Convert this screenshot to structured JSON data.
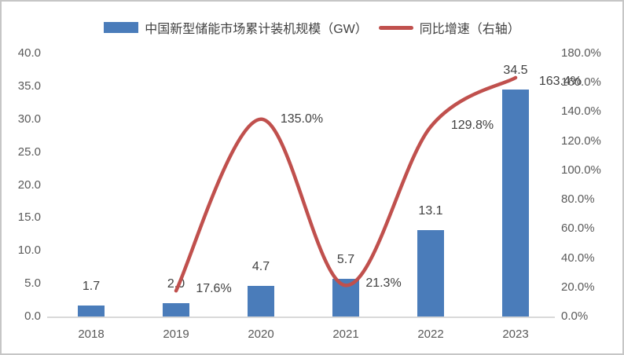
{
  "chart_data": {
    "type": "combo_bar_line",
    "title": "",
    "categories": [
      "2018",
      "2019",
      "2020",
      "2021",
      "2022",
      "2023"
    ],
    "series": [
      {
        "name": "中国新型储能市场累计装机规模（GW）",
        "chart": "bar",
        "axis": "left",
        "color": "#4a7cba",
        "values": [
          1.7,
          2.0,
          4.7,
          5.7,
          13.1,
          34.5
        ],
        "data_labels": [
          "1.7",
          "2.0",
          "4.7",
          "5.7",
          "13.1",
          "34.5"
        ]
      },
      {
        "name": "同比增速（右轴）",
        "chart": "line",
        "smooth": true,
        "axis": "right",
        "color": "#c0504d",
        "values": [
          null,
          17.6,
          135.0,
          21.3,
          129.8,
          163.4
        ],
        "data_labels": [
          null,
          "17.6%",
          "135.0%",
          "21.3%",
          "129.8%",
          "163.4%"
        ]
      }
    ],
    "left_axis": {
      "min": 0,
      "max": 40,
      "ticks": [
        "40.0",
        "35.0",
        "30.0",
        "25.0",
        "20.0",
        "15.0",
        "10.0",
        "5.0",
        "0.0"
      ]
    },
    "right_axis": {
      "min": 0,
      "max": 180,
      "ticks": [
        "180.0%",
        "160.0%",
        "140.0%",
        "120.0%",
        "100.0%",
        "80.0%",
        "60.0%",
        "40.0%",
        "20.0%",
        "0.0%"
      ]
    },
    "legend_position": "top",
    "grid": false,
    "colors": {
      "bar": "#4a7cba",
      "line": "#c0504d",
      "axis_text": "#595959",
      "label_text": "#404040"
    }
  }
}
